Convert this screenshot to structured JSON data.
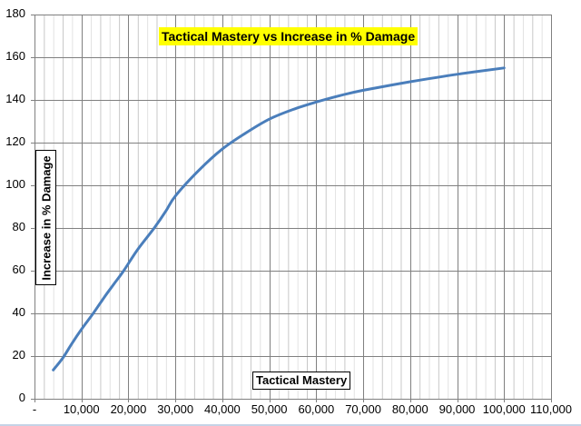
{
  "chart_data": {
    "type": "line",
    "title": "Tactical Mastery vs Increase in % Damage",
    "xlabel": "Tactical Mastery",
    "ylabel": "Increase in % Damage",
    "xlim": [
      0,
      110000
    ],
    "ylim": [
      0,
      180
    ],
    "x_ticks": [
      "-",
      "10,000",
      "20,000",
      "30,000",
      "40,000",
      "50,000",
      "60,000",
      "70,000",
      "80,000",
      "90,000",
      "100,000",
      "110,000"
    ],
    "y_ticks": [
      "0",
      "20",
      "40",
      "60",
      "80",
      "100",
      "120",
      "140",
      "160",
      "180"
    ],
    "grid": {
      "major": true,
      "minor_x": true,
      "major_color": "#808080",
      "minor_color": "#c8c8c8"
    },
    "legend": null,
    "series": [
      {
        "name": "Increase in % Damage",
        "color": "#4a7ebb",
        "x": [
          4000,
          6000,
          8000,
          10000,
          12500,
          15000,
          17000,
          19000,
          22000,
          25500,
          28000,
          30000,
          35000,
          40000,
          45000,
          50000,
          55000,
          60000,
          65000,
          70000,
          80000,
          90000,
          100000
        ],
        "y": [
          13.5,
          19,
          26,
          32.5,
          40,
          48,
          54,
          60,
          70,
          80,
          88,
          95,
          107,
          117,
          124.5,
          131,
          135.5,
          139,
          142,
          144.5,
          148.5,
          152,
          155
        ]
      }
    ],
    "title_bg": "#ffff00"
  }
}
